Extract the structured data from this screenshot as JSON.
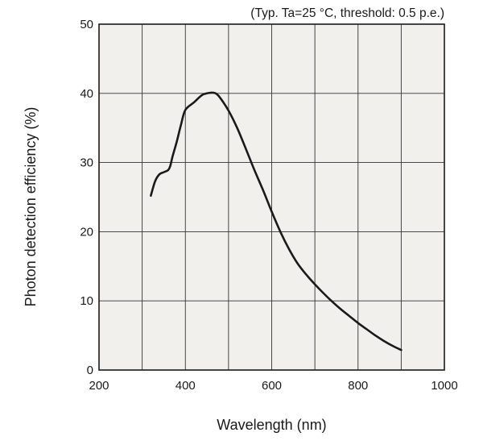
{
  "chart_data": {
    "type": "line",
    "title": "",
    "annotation": "(Typ. Ta=25 °C, threshold: 0.5 p.e.)",
    "xlabel": "Wavelength (nm)",
    "ylabel": "Photon detection efficiency (%)",
    "xlim": [
      200,
      1000
    ],
    "ylim": [
      0,
      50
    ],
    "xticks": [
      200,
      400,
      600,
      800,
      1000
    ],
    "yticks": [
      0,
      10,
      20,
      30,
      40,
      50
    ],
    "x_minor_grid_step": 100,
    "y_grid_step": 10,
    "grid": true,
    "background": "#f1f0ec",
    "line_color": "#1a1a1a",
    "series": [
      {
        "x": [
          320,
          330,
          340,
          350,
          360,
          365,
          370,
          380,
          390,
          400,
          420,
          440,
          460,
          470,
          480,
          500,
          520,
          540,
          560,
          580,
          600,
          620,
          640,
          660,
          680,
          700,
          720,
          740,
          760,
          780,
          800,
          820,
          840,
          860,
          880,
          900
        ],
        "y": [
          25.2,
          27.3,
          28.3,
          28.6,
          28.9,
          29.5,
          30.8,
          33.0,
          35.5,
          37.6,
          38.7,
          39.8,
          40.1,
          40.0,
          39.4,
          37.5,
          35.0,
          32.0,
          28.9,
          26.0,
          22.9,
          20.0,
          17.5,
          15.4,
          13.8,
          12.4,
          11.1,
          9.9,
          8.8,
          7.8,
          6.8,
          5.9,
          5.0,
          4.2,
          3.5,
          2.9
        ]
      }
    ]
  }
}
